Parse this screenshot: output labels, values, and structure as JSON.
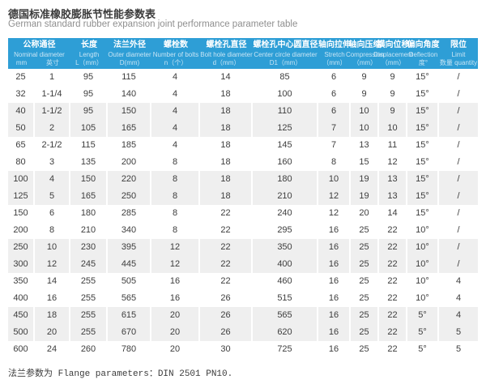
{
  "page": {
    "title_zh": "德国标准橡胶膨胀节性能参数表",
    "title_en": "German standard rubber expansion joint performance parameter table",
    "footer_note": "法兰参数为 Flange parameters：DIN 2501 PN10."
  },
  "colors": {
    "header_bg": "#2E9ED6",
    "header_text": "#FFFFFF",
    "header_subtext": "#C8E5F5",
    "row_stripe": "#EFEFEF",
    "row_text": "#3D3D3D"
  },
  "table": {
    "header": {
      "group_nominal": {
        "zh": "公称通径",
        "en": "Nominal diameter",
        "sub_mm": "mm",
        "sub_inch": "英寸"
      },
      "columns": [
        {
          "zh": "长度",
          "en": "Length",
          "sub": "L（mm）"
        },
        {
          "zh": "法兰外径",
          "en": "Outer diameter",
          "sub": "D(mm)"
        },
        {
          "zh": "螺栓数",
          "en": "Number of bolts",
          "sub": "n（个）"
        },
        {
          "zh": "螺栓孔直径",
          "en": "Bolt hole diameter",
          "sub": "d（mm）"
        },
        {
          "zh": "螺栓孔中心圆直径",
          "en": "Center circle diameter",
          "sub": "D1（mm）"
        },
        {
          "zh": "轴向拉伸",
          "en": "Stretch",
          "sub": "（mm）"
        },
        {
          "zh": "轴向压缩",
          "en": "Compression",
          "sub": "（mm）"
        },
        {
          "zh": "横向位移",
          "en": "Displacement",
          "sub": "（mm）"
        },
        {
          "zh": "偏向角度",
          "en": "Deflection",
          "sub": "度°"
        },
        {
          "zh": "限位",
          "en": "Limit",
          "sub": "数量 quantity"
        }
      ]
    },
    "rows": [
      [
        "25",
        "1",
        "95",
        "115",
        "4",
        "14",
        "85",
        "6",
        "9",
        "9",
        "15°",
        "/"
      ],
      [
        "32",
        "1-1/4",
        "95",
        "140",
        "4",
        "18",
        "100",
        "6",
        "9",
        "9",
        "15°",
        "/"
      ],
      [
        "40",
        "1-1/2",
        "95",
        "150",
        "4",
        "18",
        "110",
        "6",
        "10",
        "9",
        "15°",
        "/"
      ],
      [
        "50",
        "2",
        "105",
        "165",
        "4",
        "18",
        "125",
        "7",
        "10",
        "10",
        "15°",
        "/"
      ],
      [
        "65",
        "2-1/2",
        "115",
        "185",
        "4",
        "18",
        "145",
        "7",
        "13",
        "11",
        "15°",
        "/"
      ],
      [
        "80",
        "3",
        "135",
        "200",
        "8",
        "18",
        "160",
        "8",
        "15",
        "12",
        "15°",
        "/"
      ],
      [
        "100",
        "4",
        "150",
        "220",
        "8",
        "18",
        "180",
        "10",
        "19",
        "13",
        "15°",
        "/"
      ],
      [
        "125",
        "5",
        "165",
        "250",
        "8",
        "18",
        "210",
        "12",
        "19",
        "13",
        "15°",
        "/"
      ],
      [
        "150",
        "6",
        "180",
        "285",
        "8",
        "22",
        "240",
        "12",
        "20",
        "14",
        "15°",
        "/"
      ],
      [
        "200",
        "8",
        "210",
        "340",
        "8",
        "22",
        "295",
        "16",
        "25",
        "22",
        "10°",
        "/"
      ],
      [
        "250",
        "10",
        "230",
        "395",
        "12",
        "22",
        "350",
        "16",
        "25",
        "22",
        "10°",
        "/"
      ],
      [
        "300",
        "12",
        "245",
        "445",
        "12",
        "22",
        "400",
        "16",
        "25",
        "22",
        "10°",
        "/"
      ],
      [
        "350",
        "14",
        "255",
        "505",
        "16",
        "22",
        "460",
        "16",
        "25",
        "22",
        "10°",
        "4"
      ],
      [
        "400",
        "16",
        "255",
        "565",
        "16",
        "26",
        "515",
        "16",
        "25",
        "22",
        "10°",
        "4"
      ],
      [
        "450",
        "18",
        "255",
        "615",
        "20",
        "26",
        "565",
        "16",
        "25",
        "22",
        "5°",
        "4"
      ],
      [
        "500",
        "20",
        "255",
        "670",
        "20",
        "26",
        "620",
        "16",
        "25",
        "22",
        "5°",
        "5"
      ],
      [
        "600",
        "24",
        "260",
        "780",
        "20",
        "30",
        "725",
        "16",
        "25",
        "22",
        "5°",
        "5"
      ]
    ]
  }
}
